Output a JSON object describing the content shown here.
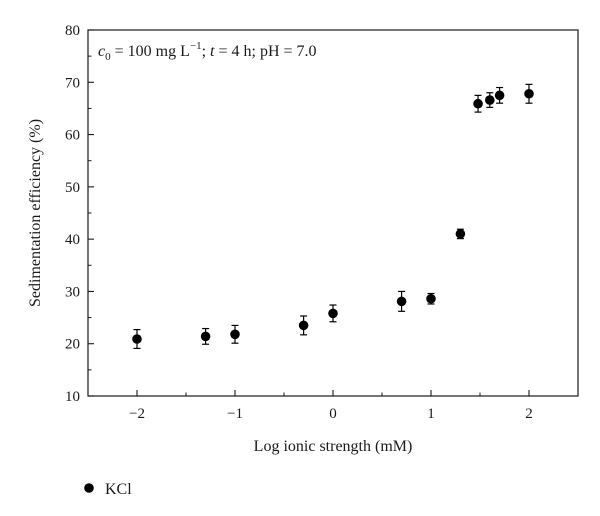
{
  "chart_data": {
    "type": "scatter",
    "xlabel": "Log ionic strength (mM)",
    "ylabel": "Sedimentation efficiency (%)",
    "xlim": [
      -2.5,
      2.5
    ],
    "ylim": [
      10,
      80
    ],
    "x_ticks": [
      "−2",
      "−1",
      "0",
      "1",
      "2"
    ],
    "y_ticks": [
      "10",
      "20",
      "30",
      "40",
      "50",
      "60",
      "70",
      "80"
    ],
    "x_tick_values": [
      -2,
      -1,
      0,
      1,
      2
    ],
    "y_tick_values": [
      10,
      20,
      30,
      40,
      50,
      60,
      70,
      80
    ],
    "annotation": {
      "c_symbol": "c",
      "c_sub": "0",
      "c_rest": " = 100 mg L",
      "c_sup": "−1",
      "t_sep": "; ",
      "t_symbol": "t",
      "t_rest": " = 4 h; pH = 7.0"
    },
    "legend": {
      "label": "KCl",
      "position": "bottom-left"
    },
    "series": [
      {
        "name": "KCl",
        "color": "#000000",
        "points": [
          {
            "x": -2.0,
            "y": 20.9,
            "err": 1.8
          },
          {
            "x": -1.3,
            "y": 21.4,
            "err": 1.5
          },
          {
            "x": -1.0,
            "y": 21.8,
            "err": 1.7
          },
          {
            "x": -0.3,
            "y": 23.5,
            "err": 1.8
          },
          {
            "x": 0.0,
            "y": 25.8,
            "err": 1.6
          },
          {
            "x": 0.7,
            "y": 28.1,
            "err": 1.9
          },
          {
            "x": 1.0,
            "y": 28.6,
            "err": 1.0
          },
          {
            "x": 1.3,
            "y": 41.0,
            "err": 0.9
          },
          {
            "x": 1.48,
            "y": 65.9,
            "err": 1.6
          },
          {
            "x": 1.6,
            "y": 66.6,
            "err": 1.4
          },
          {
            "x": 1.7,
            "y": 67.5,
            "err": 1.5
          },
          {
            "x": 2.0,
            "y": 67.8,
            "err": 1.8
          }
        ]
      }
    ]
  }
}
